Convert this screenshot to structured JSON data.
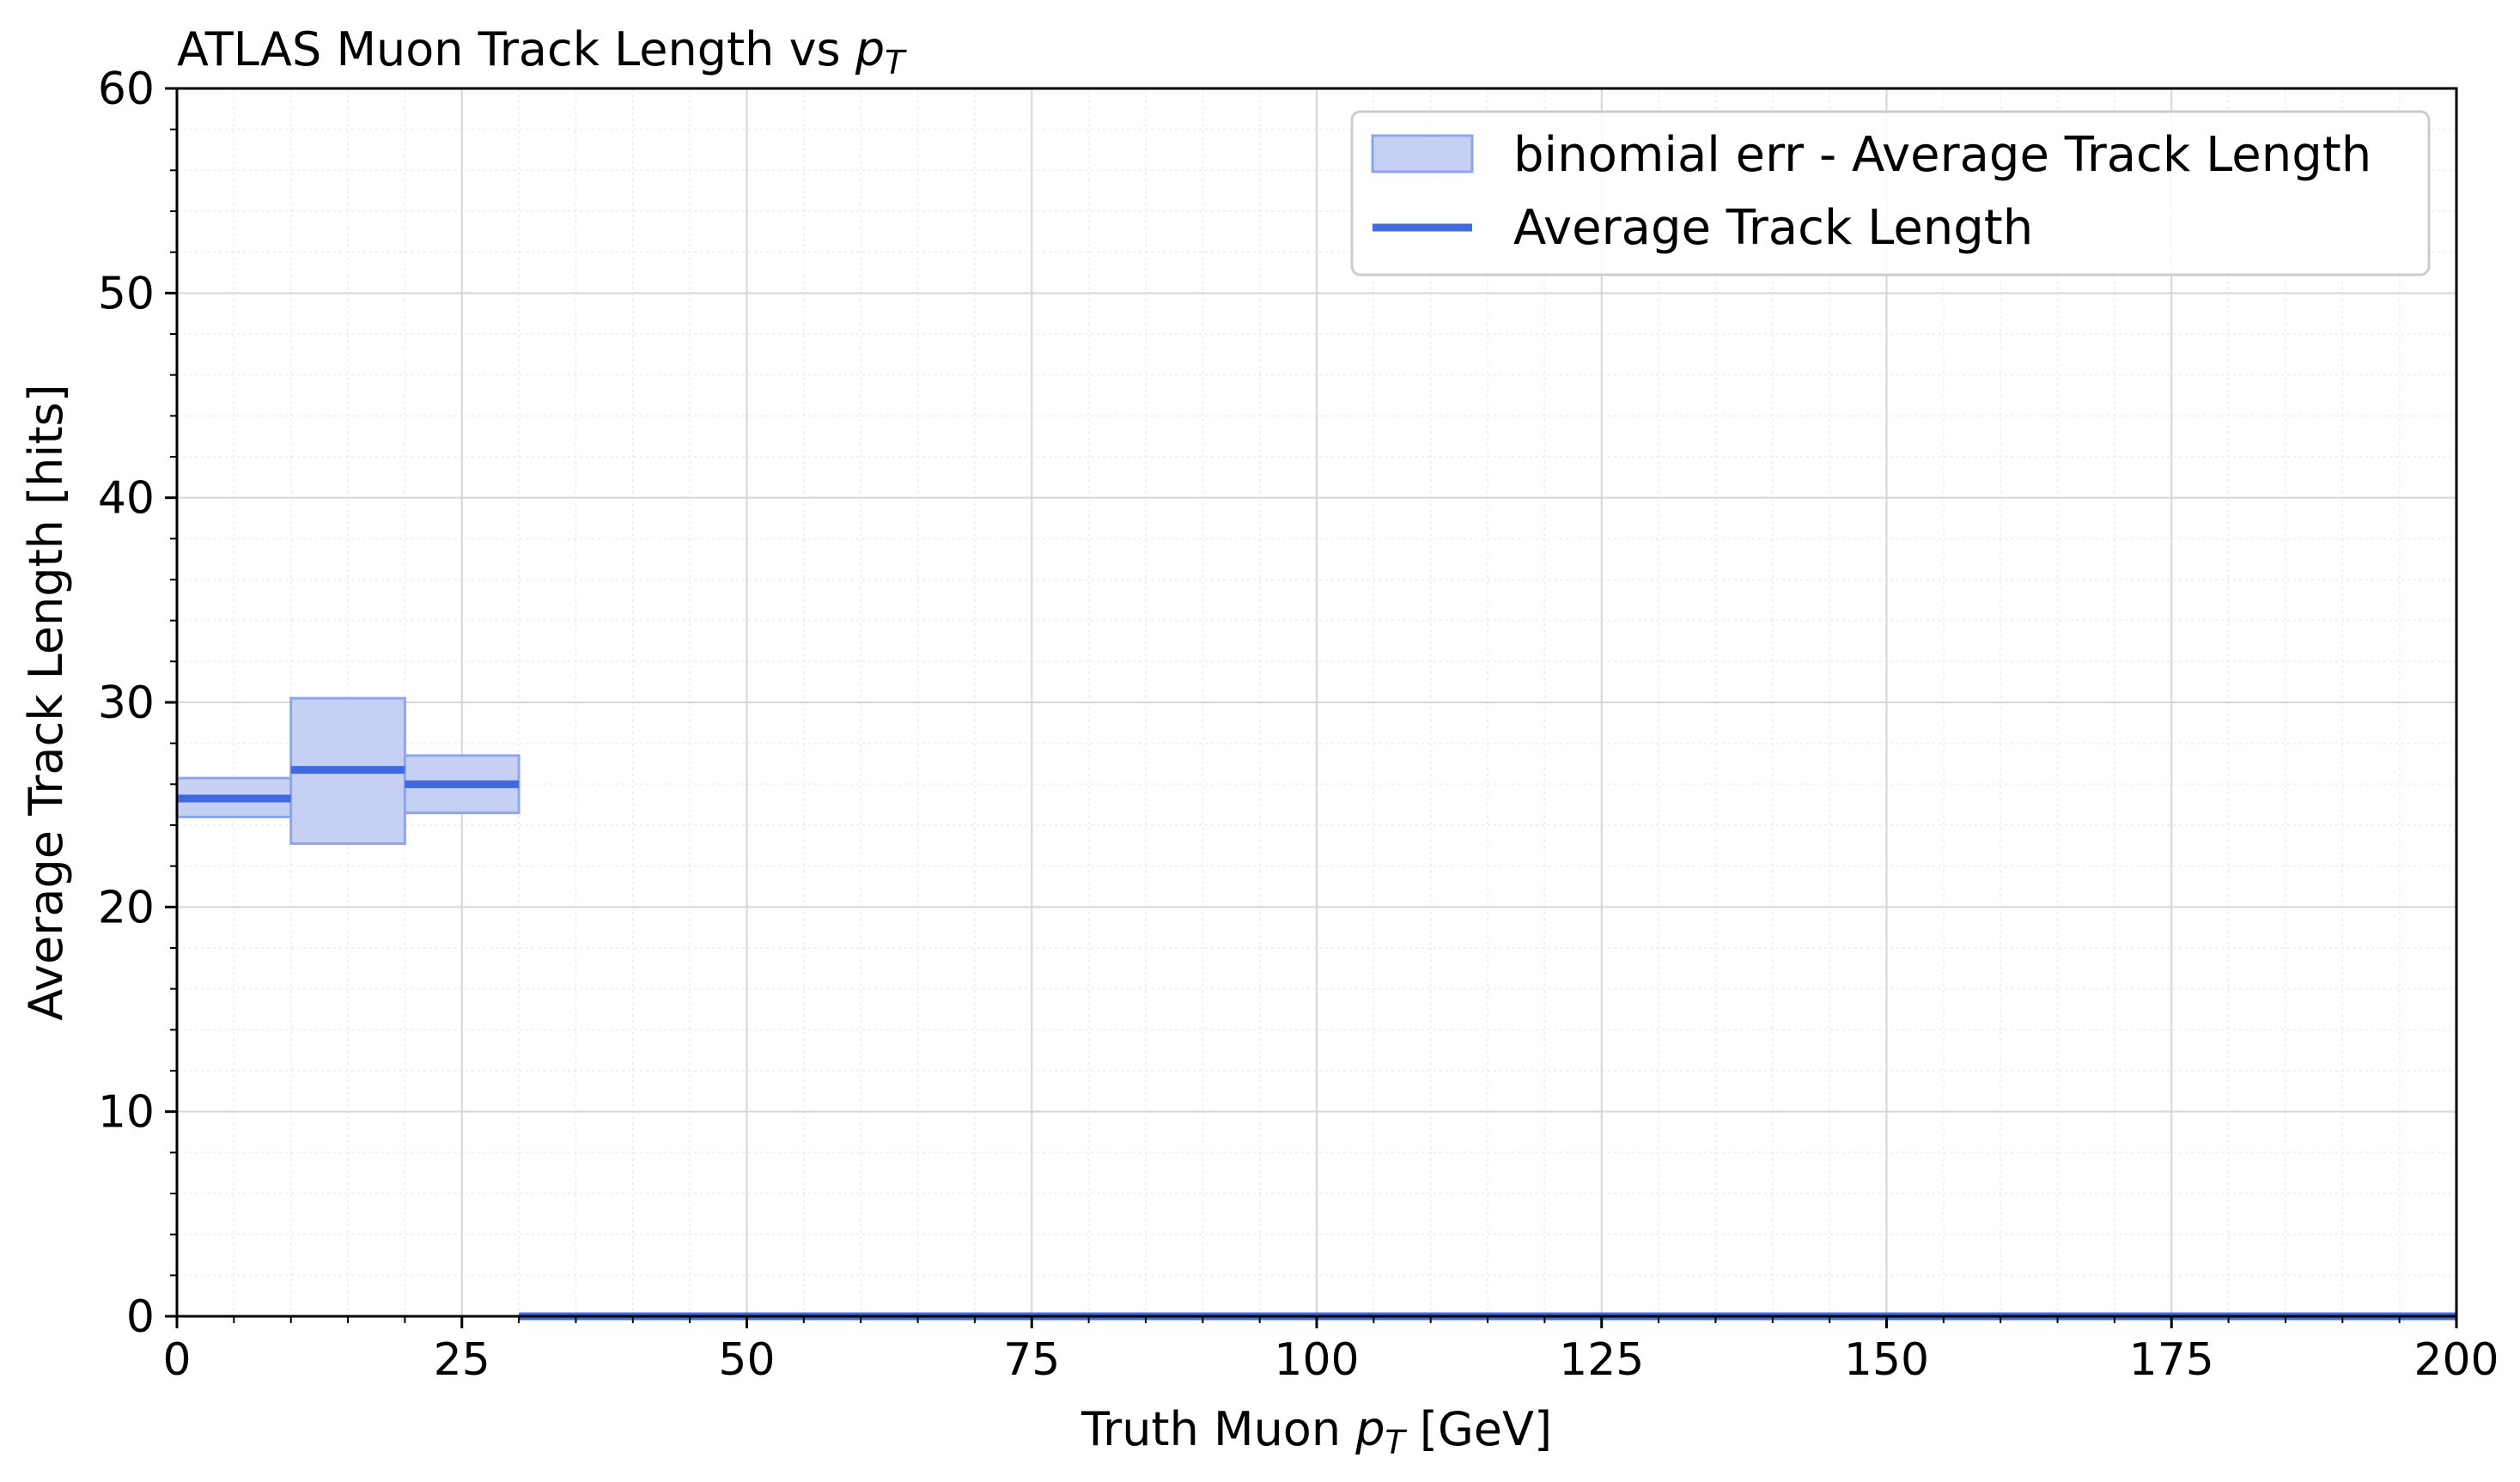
{
  "chart_data": {
    "type": "histogram",
    "title_main": "ATLAS Muon Track Length vs ",
    "title_var": "p",
    "title_sub": "T",
    "xlabel_pre": "Truth Muon ",
    "xlabel_var": "p",
    "xlabel_sub": "T",
    "xlabel_post": " [GeV]",
    "ylabel": "Average Track Length [hits]",
    "xlim": [
      0,
      200
    ],
    "ylim": [
      0,
      60
    ],
    "xticks": [
      "0",
      "25",
      "50",
      "75",
      "100",
      "125",
      "150",
      "175",
      "200"
    ],
    "yticks": [
      "0",
      "10",
      "20",
      "30",
      "40",
      "50",
      "60"
    ],
    "grid": true,
    "legend_position": "top-right",
    "legend": {
      "band_label": "binomial err - Average Track Length",
      "line_label": "Average Track Length"
    },
    "series": [
      {
        "name": "Average Track Length",
        "bins": [
          {
            "x0": 0,
            "x1": 10,
            "y": 25.3,
            "err_low": 24.4,
            "err_high": 26.3
          },
          {
            "x0": 10,
            "x1": 20,
            "y": 26.7,
            "err_low": 23.1,
            "err_high": 30.2
          },
          {
            "x0": 20,
            "x1": 30,
            "y": 26.0,
            "err_low": 24.6,
            "err_high": 27.4
          },
          {
            "x0": 30,
            "x1": 200,
            "y": 0,
            "err_low": 0,
            "err_high": 0
          }
        ]
      }
    ],
    "colors": {
      "line": "#4169e1",
      "band_fill": "#c5d0f4",
      "band_edge": "#8fa5eb"
    }
  }
}
